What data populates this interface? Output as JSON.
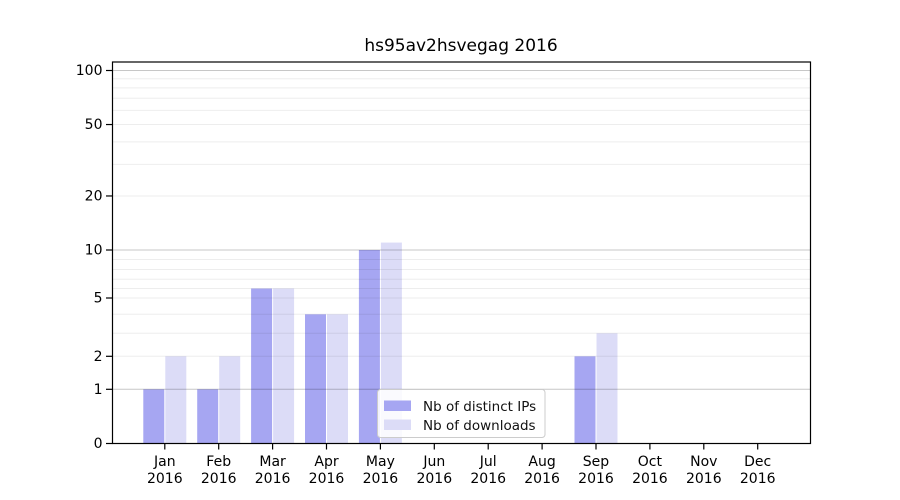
{
  "chart_data": {
    "type": "bar",
    "title": "hs95av2hsvegag 2016",
    "x_year_line": "2016",
    "categories": [
      "Jan",
      "Feb",
      "Mar",
      "Apr",
      "May",
      "Jun",
      "Jul",
      "Aug",
      "Sep",
      "Oct",
      "Nov",
      "Dec"
    ],
    "series": [
      {
        "name": "Nb of distinct IPs",
        "color": "#a6a6f2",
        "values": [
          1,
          1,
          6,
          4,
          10,
          0,
          0,
          0,
          2,
          0,
          0,
          0
        ]
      },
      {
        "name": "Nb of downloads",
        "color": "#dcdcf7",
        "values": [
          2,
          2,
          6,
          4,
          11,
          0,
          0,
          0,
          3,
          0,
          0,
          0
        ]
      }
    ],
    "yscale": "symlog",
    "ylim": [
      0,
      110
    ],
    "y_tick_labels": [
      0,
      1,
      2,
      5,
      10,
      20,
      50,
      100
    ],
    "y_major_gridlines": [
      1,
      10,
      100
    ],
    "y_minor_gridlines": [
      2,
      3,
      4,
      5,
      6,
      7,
      8,
      9,
      20,
      30,
      40,
      50,
      60,
      70,
      80,
      90
    ],
    "grid": true,
    "legend_position": "lower center",
    "xlabel": "",
    "ylabel": ""
  },
  "colors": {
    "background": "#ffffff",
    "axis": "#000000",
    "major_grid": "rgba(0,0,0,0.22)",
    "minor_grid": "rgba(0,0,0,0.07)",
    "legend_border": "#cccccc",
    "legend_fill": "rgba(255,255,255,0.85)"
  }
}
